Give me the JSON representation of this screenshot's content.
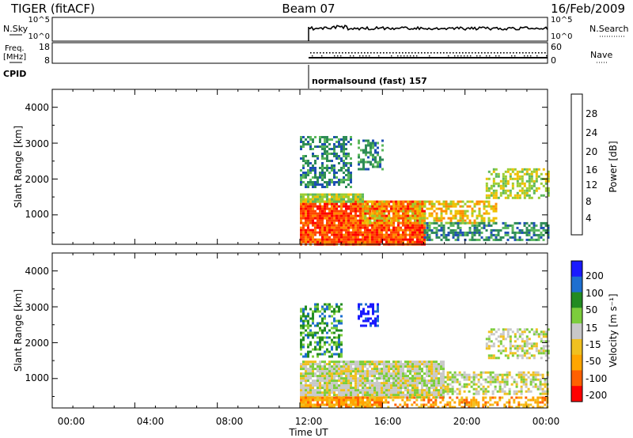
{
  "header": {
    "station": "TIGER (fitACF)",
    "beam": "Beam 07",
    "date": "16/Feb/2009"
  },
  "top_panels": {
    "nsky_label": "N.Sky",
    "nsearch_label": "N.Search",
    "nsky_ticks": [
      "10^5",
      "10^0"
    ],
    "nsearch_ticks": [
      "10^5",
      "10^0"
    ],
    "freq_label_line1": "Freq.",
    "freq_label_line2": "[MHz]",
    "freq_ticks": [
      "18",
      "8"
    ],
    "nave_label": "Nave",
    "nave_ticks": [
      "60",
      "0"
    ],
    "cpid_label": "CPID",
    "cpid_text": "normalsound (fast) 157"
  },
  "colorbars": {
    "power": {
      "label": "Power [dB]",
      "ticks": [
        "28",
        "24",
        "20",
        "16",
        "12",
        "8",
        "4"
      ],
      "colors": [
        "#0000ee",
        "#1e4fb4",
        "#2e8b57",
        "#5cb85c",
        "#9acd32",
        "#f0c000",
        "#ff8c00",
        "#ff4500",
        "#ff0000"
      ]
    },
    "velocity": {
      "label": "Velocity [m s⁻¹]",
      "ticks": [
        "200",
        "100",
        "50",
        "15",
        "-15",
        "-50",
        "-100",
        "-200"
      ],
      "colors": [
        "#1a1aff",
        "#1e6fd0",
        "#228b22",
        "#7ccd3c",
        "#c8c8c8",
        "#f0c020",
        "#ffa500",
        "#ff6000",
        "#ff0000"
      ]
    }
  },
  "axes": {
    "ylabel": "Slant Range [km]",
    "yticks": [
      "4000",
      "3000",
      "2000",
      "1000"
    ],
    "xlabel": "Time UT",
    "xticks": [
      "00:00",
      "04:00",
      "08:00",
      "12:00",
      "16:00",
      "20:00",
      "00:00"
    ]
  },
  "chart_data": [
    {
      "type": "heatmap",
      "name": "power",
      "x_range_hours": [
        0,
        24
      ],
      "y_range_km": [
        180,
        4500
      ],
      "colorbar_label": "Power [dB]",
      "data_starts_at": "12:00",
      "regions": [
        {
          "t": [
            12.0,
            18.0
          ],
          "km": [
            180,
            1400
          ],
          "value_db": 28
        },
        {
          "t": [
            12.0,
            15.0
          ],
          "km": [
            1400,
            1600
          ],
          "value_db": 16
        },
        {
          "t": [
            15.0,
            18.0
          ],
          "km": [
            800,
            1400
          ],
          "value_db": 18
        },
        {
          "t": [
            18.0,
            21.5
          ],
          "km": [
            800,
            1400
          ],
          "value_db": 20
        },
        {
          "t": [
            18.0,
            24.0
          ],
          "km": [
            300,
            800
          ],
          "value_db": 8
        },
        {
          "t": [
            21.0,
            24.0
          ],
          "km": [
            1500,
            2300
          ],
          "value_db": 16
        },
        {
          "t": [
            14.8,
            16.0
          ],
          "km": [
            2300,
            3100
          ],
          "value_db": 8
        },
        {
          "t": [
            12.0,
            14.5
          ],
          "km": [
            1800,
            3200
          ],
          "value_db": 6
        }
      ]
    },
    {
      "type": "heatmap",
      "name": "velocity",
      "x_range_hours": [
        0,
        24
      ],
      "y_range_km": [
        180,
        4500
      ],
      "colorbar_label": "Velocity [m s⁻¹]",
      "data_starts_at": "12:00",
      "regions": [
        {
          "t": [
            12.0,
            19.0
          ],
          "km": [
            500,
            1500
          ],
          "value_ms": 0
        },
        {
          "t": [
            12.0,
            16.0
          ],
          "km": [
            180,
            500
          ],
          "value_ms": -60
        },
        {
          "t": [
            16.0,
            24.0
          ],
          "km": [
            180,
            500
          ],
          "value_ms": -60
        },
        {
          "t": [
            19.0,
            24.0
          ],
          "km": [
            600,
            1200
          ],
          "value_ms": 0
        },
        {
          "t": [
            21.0,
            24.0
          ],
          "km": [
            1600,
            2400
          ],
          "value_ms": 0
        },
        {
          "t": [
            14.8,
            15.8
          ],
          "km": [
            2500,
            3100
          ],
          "value_ms": 220
        },
        {
          "t": [
            12.0,
            14.0
          ],
          "km": [
            1600,
            3100
          ],
          "value_ms": 50
        }
      ]
    }
  ]
}
